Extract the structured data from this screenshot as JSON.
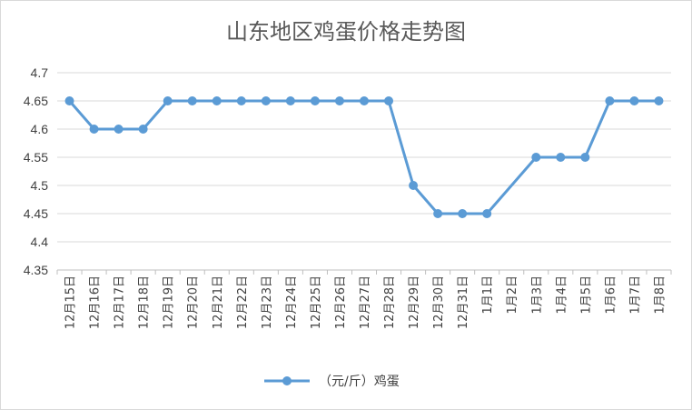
{
  "chart_data": {
    "type": "line",
    "title": "山东地区鸡蛋价格走势图",
    "categories": [
      "12月15日",
      "12月16日",
      "12月17日",
      "12月18日",
      "12月19日",
      "12月20日",
      "12月21日",
      "12月22日",
      "12月23日",
      "12月24日",
      "12月25日",
      "12月26日",
      "12月27日",
      "12月28日",
      "12月29日",
      "12月30日",
      "12月31日",
      "1月1日",
      "1月2日",
      "1月3日",
      "1月4日",
      "1月5日",
      "1月6日",
      "1月7日",
      "1月8日"
    ],
    "series": [
      {
        "name": "（元/斤）鸡蛋",
        "values": [
          4.65,
          4.6,
          4.6,
          4.6,
          4.65,
          4.65,
          4.65,
          4.65,
          4.65,
          4.65,
          4.65,
          4.65,
          4.65,
          4.65,
          4.5,
          4.45,
          4.45,
          4.45,
          null,
          4.55,
          4.55,
          4.55,
          4.65,
          4.65,
          4.65
        ],
        "color": "#5b9bd5"
      }
    ],
    "yticks": [
      "4.35",
      "4.4",
      "4.45",
      "4.5",
      "4.55",
      "4.6",
      "4.65",
      "4.7"
    ],
    "ylim": [
      4.35,
      4.7
    ],
    "grid": true,
    "legend_position": "bottom"
  }
}
